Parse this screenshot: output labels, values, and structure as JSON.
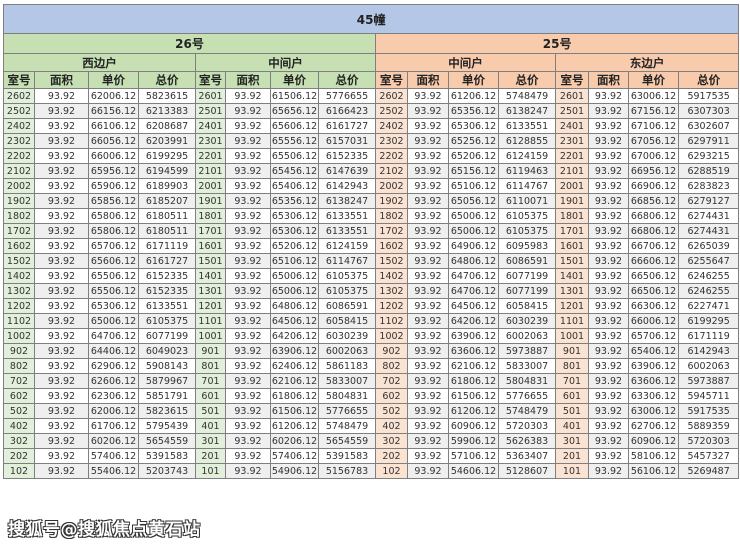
{
  "title": "45幢",
  "buildings": [
    {
      "name": "26号",
      "units": [
        "西边户",
        "中间户"
      ]
    },
    {
      "name": "25号",
      "units": [
        "中间户",
        "东边户"
      ]
    }
  ],
  "column_headers": [
    "室号",
    "面积",
    "单价",
    "总价"
  ],
  "colors": {
    "title_bg": "#b4c7e7",
    "building26_bg": "#c6e0b4",
    "building25_bg": "#f8cbad"
  },
  "watermark": "搜狐号@搜狐焦点黄石站",
  "groups": [
    {
      "building": "26号",
      "unit": "西边户",
      "rows": [
        [
          "2602",
          "93.92",
          "62006.12",
          "5823615"
        ],
        [
          "2502",
          "93.92",
          "66156.12",
          "6213383"
        ],
        [
          "2402",
          "93.92",
          "66106.12",
          "6208687"
        ],
        [
          "2302",
          "93.92",
          "66056.12",
          "6203991"
        ],
        [
          "2202",
          "93.92",
          "66006.12",
          "6199295"
        ],
        [
          "2102",
          "93.92",
          "65956.12",
          "6194599"
        ],
        [
          "2002",
          "93.92",
          "65906.12",
          "6189903"
        ],
        [
          "1902",
          "93.92",
          "65856.12",
          "6185207"
        ],
        [
          "1802",
          "93.92",
          "65806.12",
          "6180511"
        ],
        [
          "1702",
          "93.92",
          "65806.12",
          "6180511"
        ],
        [
          "1602",
          "93.92",
          "65706.12",
          "6171119"
        ],
        [
          "1502",
          "93.92",
          "65606.12",
          "6161727"
        ],
        [
          "1402",
          "93.92",
          "65506.12",
          "6152335"
        ],
        [
          "1302",
          "93.92",
          "65506.12",
          "6152335"
        ],
        [
          "1202",
          "93.92",
          "65306.12",
          "6133551"
        ],
        [
          "1102",
          "93.92",
          "65006.12",
          "6105375"
        ],
        [
          "1002",
          "93.92",
          "64706.12",
          "6077199"
        ],
        [
          "902",
          "93.92",
          "64406.12",
          "6049023"
        ],
        [
          "802",
          "93.92",
          "62906.12",
          "5908143"
        ],
        [
          "702",
          "93.92",
          "62606.12",
          "5879967"
        ],
        [
          "602",
          "93.92",
          "62306.12",
          "5851791"
        ],
        [
          "502",
          "93.92",
          "62006.12",
          "5823615"
        ],
        [
          "402",
          "93.92",
          "61706.12",
          "5795439"
        ],
        [
          "302",
          "93.92",
          "60206.12",
          "5654559"
        ],
        [
          "202",
          "93.92",
          "57406.12",
          "5391583"
        ],
        [
          "102",
          "93.92",
          "55406.12",
          "5203743"
        ]
      ]
    },
    {
      "building": "26号",
      "unit": "中间户",
      "rows": [
        [
          "2601",
          "93.92",
          "61506.12",
          "5776655"
        ],
        [
          "2501",
          "93.92",
          "65656.12",
          "6166423"
        ],
        [
          "2401",
          "93.92",
          "65606.12",
          "6161727"
        ],
        [
          "2301",
          "93.92",
          "65556.12",
          "6157031"
        ],
        [
          "2201",
          "93.92",
          "65506.12",
          "6152335"
        ],
        [
          "2101",
          "93.92",
          "65456.12",
          "6147639"
        ],
        [
          "2001",
          "93.92",
          "65406.12",
          "6142943"
        ],
        [
          "1901",
          "93.92",
          "65356.12",
          "6138247"
        ],
        [
          "1801",
          "93.92",
          "65306.12",
          "6133551"
        ],
        [
          "1701",
          "93.92",
          "65306.12",
          "6133551"
        ],
        [
          "1601",
          "93.92",
          "65206.12",
          "6124159"
        ],
        [
          "1501",
          "93.92",
          "65106.12",
          "6114767"
        ],
        [
          "1401",
          "93.92",
          "65006.12",
          "6105375"
        ],
        [
          "1301",
          "93.92",
          "65006.12",
          "6105375"
        ],
        [
          "1201",
          "93.92",
          "64806.12",
          "6086591"
        ],
        [
          "1101",
          "93.92",
          "64506.12",
          "6058415"
        ],
        [
          "1001",
          "93.92",
          "64206.12",
          "6030239"
        ],
        [
          "901",
          "93.92",
          "63906.12",
          "6002063"
        ],
        [
          "801",
          "93.92",
          "62406.12",
          "5861183"
        ],
        [
          "701",
          "93.92",
          "62106.12",
          "5833007"
        ],
        [
          "601",
          "93.92",
          "61806.12",
          "5804831"
        ],
        [
          "501",
          "93.92",
          "61506.12",
          "5776655"
        ],
        [
          "401",
          "93.92",
          "61206.12",
          "5748479"
        ],
        [
          "301",
          "93.92",
          "60206.12",
          "5654559"
        ],
        [
          "201",
          "93.92",
          "57406.12",
          "5391583"
        ],
        [
          "101",
          "93.92",
          "54906.12",
          "5156783"
        ]
      ]
    },
    {
      "building": "25号",
      "unit": "中间户",
      "rows": [
        [
          "2602",
          "93.92",
          "61206.12",
          "5748479"
        ],
        [
          "2502",
          "93.92",
          "65356.12",
          "6138247"
        ],
        [
          "2402",
          "93.92",
          "65306.12",
          "6133551"
        ],
        [
          "2302",
          "93.92",
          "65256.12",
          "6128855"
        ],
        [
          "2202",
          "93.92",
          "65206.12",
          "6124159"
        ],
        [
          "2102",
          "93.92",
          "65156.12",
          "6119463"
        ],
        [
          "2002",
          "93.92",
          "65106.12",
          "6114767"
        ],
        [
          "1902",
          "93.92",
          "65056.12",
          "6110071"
        ],
        [
          "1802",
          "93.92",
          "65006.12",
          "6105375"
        ],
        [
          "1702",
          "93.92",
          "65006.12",
          "6105375"
        ],
        [
          "1602",
          "93.92",
          "64906.12",
          "6095983"
        ],
        [
          "1502",
          "93.92",
          "64806.12",
          "6086591"
        ],
        [
          "1402",
          "93.92",
          "64706.12",
          "6077199"
        ],
        [
          "1302",
          "93.92",
          "64706.12",
          "6077199"
        ],
        [
          "1202",
          "93.92",
          "64506.12",
          "6058415"
        ],
        [
          "1102",
          "93.92",
          "64206.12",
          "6030239"
        ],
        [
          "1002",
          "93.92",
          "63906.12",
          "6002063"
        ],
        [
          "902",
          "93.92",
          "63606.12",
          "5973887"
        ],
        [
          "802",
          "93.92",
          "62106.12",
          "5833007"
        ],
        [
          "702",
          "93.92",
          "61806.12",
          "5804831"
        ],
        [
          "602",
          "93.92",
          "61506.12",
          "5776655"
        ],
        [
          "502",
          "93.92",
          "61206.12",
          "5748479"
        ],
        [
          "402",
          "93.92",
          "60906.12",
          "5720303"
        ],
        [
          "302",
          "93.92",
          "59906.12",
          "5626383"
        ],
        [
          "202",
          "93.92",
          "57106.12",
          "5363407"
        ],
        [
          "102",
          "93.92",
          "54606.12",
          "5128607"
        ]
      ]
    },
    {
      "building": "25号",
      "unit": "东边户",
      "rows": [
        [
          "2601",
          "93.92",
          "63006.12",
          "5917535"
        ],
        [
          "2501",
          "93.92",
          "67156.12",
          "6307303"
        ],
        [
          "2401",
          "93.92",
          "67106.12",
          "6302607"
        ],
        [
          "2301",
          "93.92",
          "67056.12",
          "6297911"
        ],
        [
          "2201",
          "93.92",
          "67006.12",
          "6293215"
        ],
        [
          "2101",
          "93.92",
          "66956.12",
          "6288519"
        ],
        [
          "2001",
          "93.92",
          "66906.12",
          "6283823"
        ],
        [
          "1901",
          "93.92",
          "66856.12",
          "6279127"
        ],
        [
          "1801",
          "93.92",
          "66806.12",
          "6274431"
        ],
        [
          "1701",
          "93.92",
          "66806.12",
          "6274431"
        ],
        [
          "1601",
          "93.92",
          "66706.12",
          "6265039"
        ],
        [
          "1501",
          "93.92",
          "66606.12",
          "6255647"
        ],
        [
          "1401",
          "93.92",
          "66506.12",
          "6246255"
        ],
        [
          "1301",
          "93.92",
          "66506.12",
          "6246255"
        ],
        [
          "1201",
          "93.92",
          "66306.12",
          "6227471"
        ],
        [
          "1101",
          "93.92",
          "66006.12",
          "6199295"
        ],
        [
          "1001",
          "93.92",
          "65706.12",
          "6171119"
        ],
        [
          "901",
          "93.92",
          "65406.12",
          "6142943"
        ],
        [
          "801",
          "93.92",
          "63906.12",
          "6002063"
        ],
        [
          "701",
          "93.92",
          "63606.12",
          "5973887"
        ],
        [
          "601",
          "93.92",
          "63306.12",
          "5945711"
        ],
        [
          "501",
          "93.92",
          "63006.12",
          "5917535"
        ],
        [
          "401",
          "93.92",
          "62706.12",
          "5889359"
        ],
        [
          "301",
          "93.92",
          "60906.12",
          "5720303"
        ],
        [
          "201",
          "93.92",
          "58106.12",
          "5457327"
        ],
        [
          "101",
          "93.92",
          "56106.12",
          "5269487"
        ]
      ]
    }
  ]
}
